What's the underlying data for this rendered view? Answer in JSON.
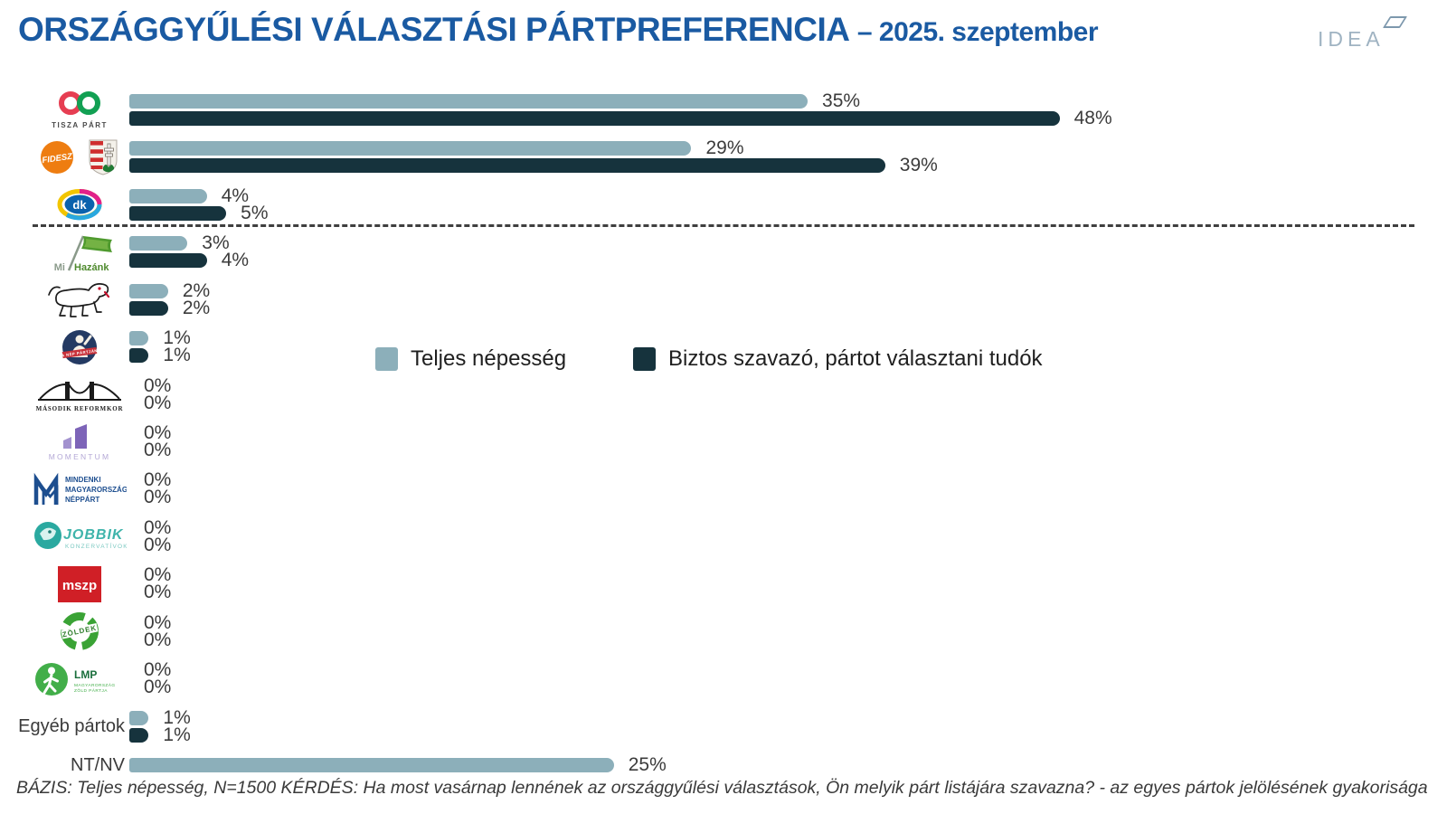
{
  "header": {
    "title": "ORSZÁGGYŰLÉSI VÁLASZTÁSI PÁRTPREFERENCIA",
    "subtitle": "– 2025. szeptember",
    "brand": "IDEA"
  },
  "legend": {
    "items": [
      {
        "label": "Teljes népesség",
        "color": "#8cafba"
      },
      {
        "label": "Biztos szavazó, pártot választani tudók",
        "color": "#16333d"
      }
    ]
  },
  "footer": {
    "text": "BÁZIS: Teljes népesség, N=1500  KÉRDÉS:  Ha most vasárnap lennének az országgyűlési választások, Ön melyik párt listájára szavazna? - az egyes pártok jelölésének gyakorisága"
  },
  "chart_data": {
    "type": "bar",
    "orientation": "horizontal",
    "unit": "%",
    "xlim": [
      0,
      50
    ],
    "grid": false,
    "legend_position": "middle-right",
    "series": [
      {
        "name": "Teljes népesség",
        "color": "#8cafba"
      },
      {
        "name": "Biztos szavazó, pártot választani tudók",
        "color": "#16333d"
      }
    ],
    "divider_before_index": 3,
    "rows": [
      {
        "key": "tisza-part",
        "party": "TISZA PÁRT",
        "total": 35,
        "certain": 48
      },
      {
        "key": "fidesz",
        "party": "FIDESZ",
        "total": 29,
        "certain": 39
      },
      {
        "key": "dk",
        "party": "DK",
        "total": 4,
        "certain": 5
      },
      {
        "key": "mi-hazank",
        "party": "Mi Hazánk",
        "total": 3,
        "certain": 4
      },
      {
        "key": "mkkp",
        "party": "MKKP",
        "total": 2,
        "certain": 2
      },
      {
        "key": "nep-partjan",
        "party": "A Nép Pártján",
        "total": 1,
        "certain": 1
      },
      {
        "key": "masodik-reformkor",
        "party": "Második Reformkor",
        "total": 0,
        "certain": 0
      },
      {
        "key": "momentum",
        "party": "Momentum",
        "total": 0,
        "certain": 0
      },
      {
        "key": "mindenki-magyarorszaga",
        "party": "Mindenki Magyarországa Néppárt",
        "total": 0,
        "certain": 0
      },
      {
        "key": "jobbik",
        "party": "Jobbik Konzervatívok",
        "total": 0,
        "certain": 0
      },
      {
        "key": "mszp",
        "party": "MSZP",
        "total": 0,
        "certain": 0
      },
      {
        "key": "zoldek",
        "party": "Zöldek",
        "total": 0,
        "certain": 0
      },
      {
        "key": "lmp",
        "party": "LMP",
        "total": 0,
        "certain": 0
      },
      {
        "key": "egyeb-partok",
        "party": "Egyéb pártok",
        "total": 1,
        "certain": 1,
        "label_type": "text"
      },
      {
        "key": "nt-nv",
        "party": "NT/NV",
        "total": 25,
        "certain": null,
        "label_type": "text"
      }
    ]
  }
}
